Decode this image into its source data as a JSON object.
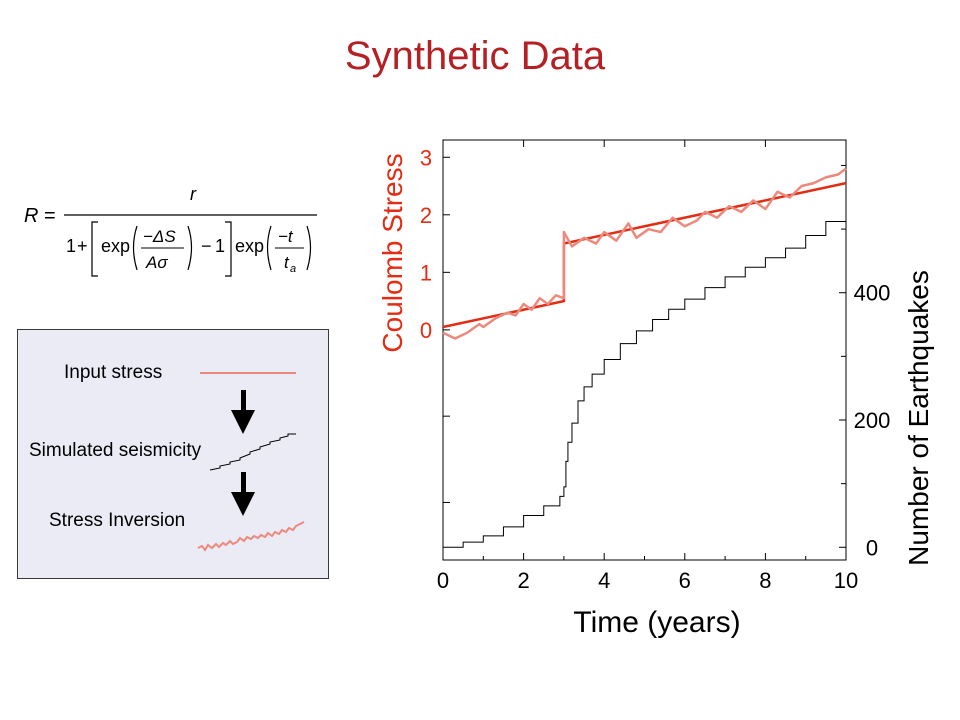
{
  "title": "Synthetic Data",
  "formula": {
    "lhs": "R",
    "numerator": "r",
    "one": "1",
    "exp": "exp",
    "minus_one": "1",
    "delta_s_num": "−ΔS",
    "a_sigma_den": "Aσ",
    "minus_t_num": "−t",
    "t_a_den": "t",
    "t_a_sub": "a"
  },
  "legend": {
    "items": [
      {
        "label": "Input stress",
        "color": "#e8877a",
        "style": "line"
      },
      {
        "label": "Simulated seismicity",
        "color": "#000000",
        "style": "staircase"
      },
      {
        "label": "Stress Inversion",
        "color": "#e8877a",
        "style": "noisy"
      }
    ],
    "arrow_color": "#000000"
  },
  "colors": {
    "title": "#b52025",
    "stress_axis": "#e32c14",
    "input_stress": "#e32c14",
    "inversion": "#eb8a7c",
    "seismicity": "#000000"
  },
  "chart_data": {
    "type": "line",
    "xlabel": "Time (years)",
    "x_ticks": [
      "0",
      "2",
      "4",
      "6",
      "8",
      "10"
    ],
    "xlim": [
      0,
      10
    ],
    "left_axis": {
      "label": "Coulomb Stress",
      "ticks": [
        "3",
        "2",
        "1",
        "0"
      ],
      "tick_values": [
        3,
        2,
        1,
        0
      ],
      "range": [
        -4,
        3.3
      ]
    },
    "right_axis": {
      "label": "Number of Earthquakes",
      "ticks": [
        "400",
        "200",
        "0"
      ],
      "tick_values": [
        400,
        200,
        0
      ],
      "range": [
        -20,
        640
      ]
    },
    "series": [
      {
        "name": "Input stress",
        "axis": "left",
        "x": [
          0,
          3,
          3,
          10
        ],
        "y": [
          0.05,
          0.5,
          1.5,
          2.55
        ]
      },
      {
        "name": "Stress Inversion",
        "axis": "left",
        "x": [
          0,
          0.3,
          0.6,
          0.9,
          1.0,
          1.3,
          1.6,
          1.8,
          2.0,
          2.2,
          2.4,
          2.6,
          2.8,
          3.0,
          3.0,
          3.2,
          3.5,
          3.8,
          4.0,
          4.3,
          4.6,
          4.8,
          5.1,
          5.4,
          5.7,
          6.0,
          6.3,
          6.5,
          6.8,
          7.1,
          7.4,
          7.7,
          8.0,
          8.3,
          8.6,
          8.9,
          9.2,
          9.5,
          9.8,
          10.0
        ],
        "y": [
          -0.05,
          -0.15,
          -0.05,
          0.1,
          0.05,
          0.2,
          0.3,
          0.25,
          0.45,
          0.35,
          0.55,
          0.45,
          0.6,
          0.55,
          1.7,
          1.45,
          1.6,
          1.5,
          1.7,
          1.55,
          1.85,
          1.6,
          1.75,
          1.7,
          1.95,
          1.8,
          1.9,
          2.05,
          1.95,
          2.15,
          2.05,
          2.25,
          2.1,
          2.4,
          2.3,
          2.5,
          2.55,
          2.65,
          2.7,
          2.8
        ]
      },
      {
        "name": "Simulated seismicity",
        "axis": "right",
        "x": [
          0,
          0.5,
          1.0,
          1.5,
          2.0,
          2.5,
          2.9,
          3.0,
          3.05,
          3.1,
          3.2,
          3.35,
          3.5,
          3.7,
          4.0,
          4.4,
          4.8,
          5.2,
          5.6,
          6.0,
          6.5,
          7.0,
          7.5,
          8.0,
          8.5,
          9.0,
          9.5,
          10.0
        ],
        "y": [
          0,
          8,
          18,
          32,
          50,
          65,
          80,
          95,
          135,
          165,
          195,
          230,
          252,
          272,
          295,
          320,
          340,
          358,
          374,
          390,
          408,
          425,
          440,
          455,
          470,
          490,
          512,
          535
        ]
      }
    ]
  }
}
